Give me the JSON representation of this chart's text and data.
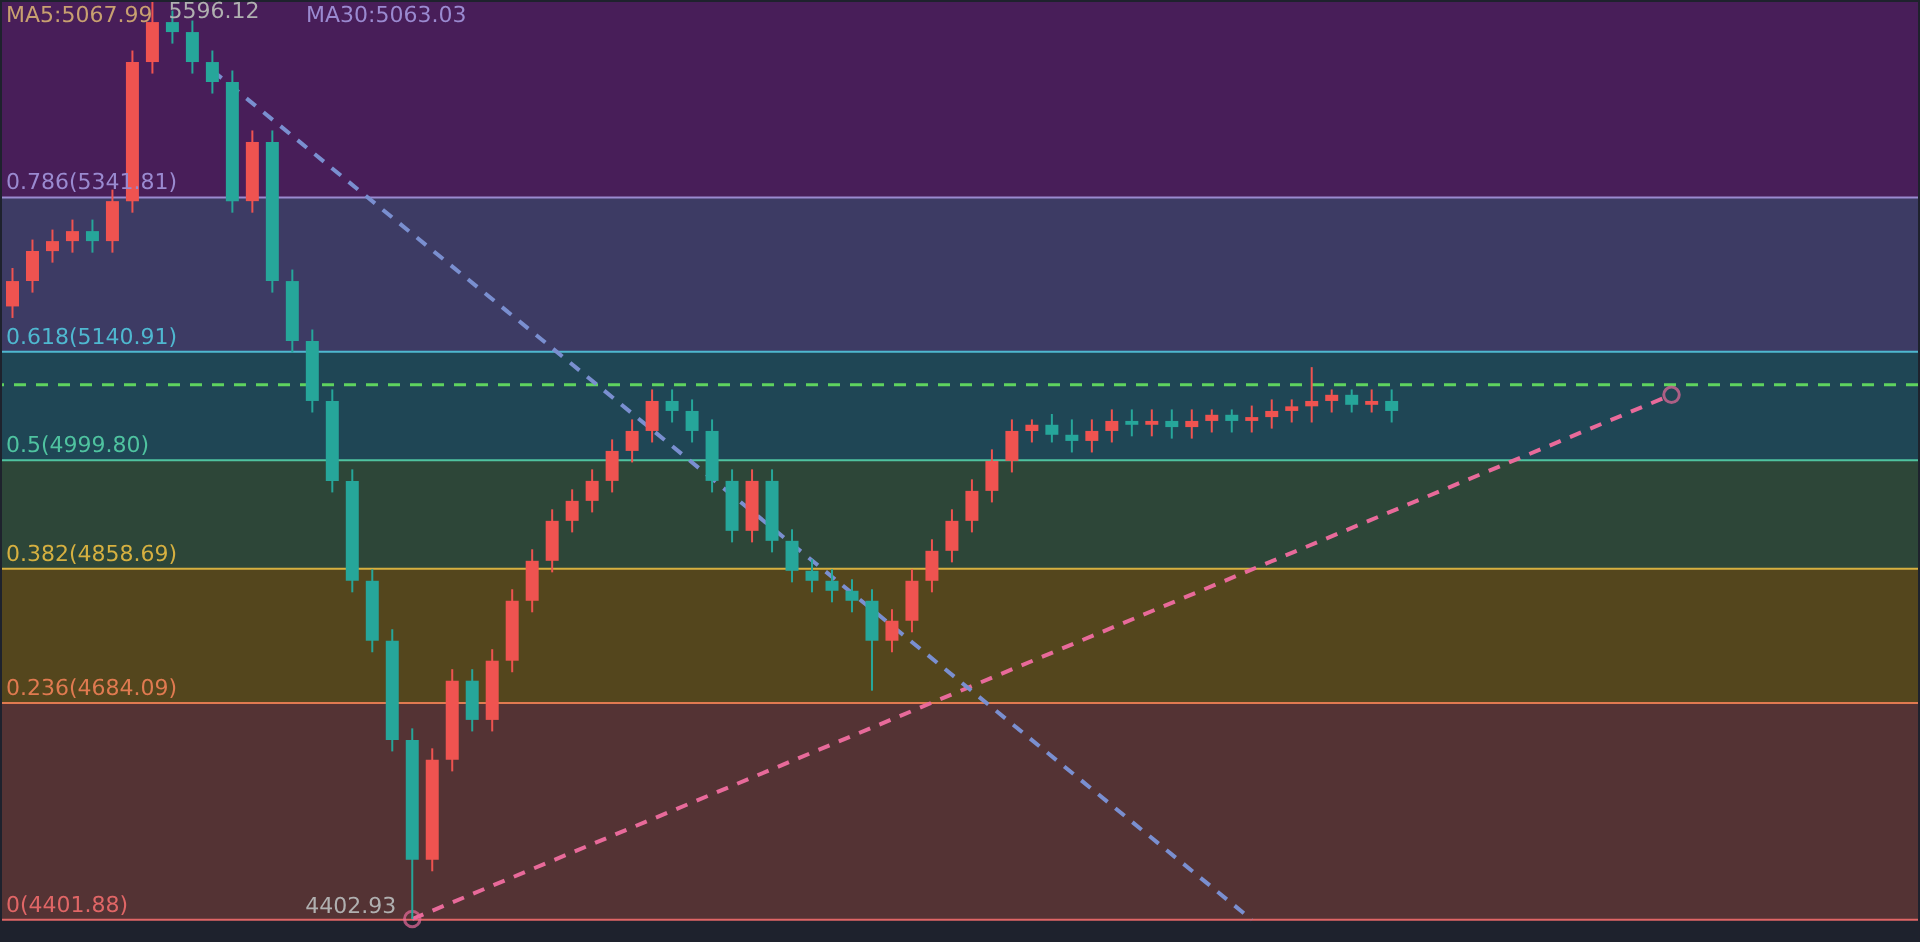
{
  "chart_data": {
    "type": "candlestick",
    "categories": [
      null,
      null,
      null,
      null,
      null,
      null,
      null,
      null,
      null,
      null,
      null,
      null,
      null,
      null,
      null,
      null,
      null,
      null,
      null,
      null,
      null,
      null,
      null,
      null,
      null,
      null,
      null,
      null,
      null,
      null,
      null,
      null,
      null,
      null,
      null,
      null,
      null,
      null,
      null,
      null,
      null,
      null,
      null,
      null,
      null,
      null,
      null,
      null,
      null,
      null,
      null,
      null,
      null,
      null,
      null,
      null,
      null,
      null,
      null,
      null,
      null,
      null,
      null,
      null,
      null,
      null,
      null,
      null,
      null,
      null,
      null,
      null,
      null,
      null,
      null,
      null,
      null,
      null,
      null,
      null,
      null,
      null,
      null,
      null
    ],
    "ohlc": [
      [
        5200,
        5250,
        5185,
        5233
      ],
      [
        5233,
        5287,
        5218,
        5272
      ],
      [
        5272,
        5300,
        5257,
        5285
      ],
      [
        5285,
        5313,
        5270,
        5298
      ],
      [
        5298,
        5313,
        5270,
        5285
      ],
      [
        5285,
        5352,
        5270,
        5337
      ],
      [
        5337,
        5533,
        5322,
        5518
      ],
      [
        5518,
        5596.12,
        5503,
        5570
      ],
      [
        5570,
        5585,
        5542,
        5557
      ],
      [
        5557,
        5572,
        5503,
        5518
      ],
      [
        5518,
        5533,
        5477,
        5492
      ],
      [
        5492,
        5507,
        5322,
        5337
      ],
      [
        5337,
        5429,
        5322,
        5414
      ],
      [
        5414,
        5429,
        5218,
        5233
      ],
      [
        5233,
        5248,
        5140,
        5155
      ],
      [
        5155,
        5170,
        5062,
        5077
      ],
      [
        5077,
        5092,
        4958,
        4973
      ],
      [
        4973,
        4988,
        4828,
        4843
      ],
      [
        4843,
        4858,
        4750,
        4765
      ],
      [
        4765,
        4780,
        4621,
        4636
      ],
      [
        4636,
        4651,
        4402.93,
        4480
      ],
      [
        4480,
        4625,
        4465,
        4610
      ],
      [
        4610,
        4728,
        4595,
        4713
      ],
      [
        4713,
        4728,
        4647,
        4662
      ],
      [
        4662,
        4754,
        4647,
        4739
      ],
      [
        4739,
        4832,
        4724,
        4817
      ],
      [
        4817,
        4884,
        4802,
        4869
      ],
      [
        4869,
        4936,
        4854,
        4921
      ],
      [
        4921,
        4962,
        4906,
        4947
      ],
      [
        4947,
        4988,
        4932,
        4973
      ],
      [
        4973,
        5027,
        4958,
        5012
      ],
      [
        5012,
        5053,
        4997,
        5038
      ],
      [
        5038,
        5092,
        5023,
        5077
      ],
      [
        5077,
        5092,
        5049,
        5064
      ],
      [
        5064,
        5079,
        5023,
        5038
      ],
      [
        5038,
        5053,
        4958,
        4973
      ],
      [
        4973,
        4988,
        4893,
        4908
      ],
      [
        4908,
        4988,
        4893,
        4973
      ],
      [
        4973,
        4988,
        4880,
        4895
      ],
      [
        4895,
        4910,
        4841,
        4856
      ],
      [
        4856,
        4871,
        4828,
        4843
      ],
      [
        4843,
        4858,
        4815,
        4830
      ],
      [
        4830,
        4845,
        4802,
        4817
      ],
      [
        4817,
        4832,
        4700,
        4765
      ],
      [
        4765,
        4806,
        4750,
        4791
      ],
      [
        4791,
        4858,
        4776,
        4843
      ],
      [
        4843,
        4897,
        4828,
        4882
      ],
      [
        4882,
        4936,
        4867,
        4921
      ],
      [
        4921,
        4975,
        4906,
        4960
      ],
      [
        4960,
        5014,
        4945,
        4999
      ],
      [
        4999,
        5053,
        4984,
        5038
      ],
      [
        5038,
        5053,
        5023,
        5046
      ],
      [
        5046,
        5060,
        5023,
        5033
      ],
      [
        5033,
        5053,
        5010,
        5025
      ],
      [
        5025,
        5053,
        5010,
        5038
      ],
      [
        5038,
        5066,
        5023,
        5051
      ],
      [
        5051,
        5066,
        5031,
        5046
      ],
      [
        5046,
        5066,
        5031,
        5051
      ],
      [
        5051,
        5066,
        5028,
        5043
      ],
      [
        5043,
        5066,
        5028,
        5051
      ],
      [
        5051,
        5066,
        5036,
        5059
      ],
      [
        5059,
        5066,
        5036,
        5051
      ],
      [
        5051,
        5071,
        5036,
        5056
      ],
      [
        5056,
        5079,
        5041,
        5064
      ],
      [
        5064,
        5079,
        5049,
        5070
      ],
      [
        5070,
        5121,
        5049,
        5077
      ],
      [
        5077,
        5092,
        5062,
        5085
      ],
      [
        5085,
        5092,
        5062,
        5072
      ],
      [
        5072,
        5092,
        5062,
        5077
      ],
      [
        5077,
        5092,
        5049,
        5064
      ],
      null,
      null,
      null,
      null,
      null,
      null,
      null,
      null,
      null,
      null,
      null,
      null,
      null,
      null
    ],
    "colors": [
      "#ef5350",
      "#ef5350",
      "#ef5350",
      "#ef5350",
      "#26a69a",
      "#ef5350",
      "#ef5350",
      "#ef5350",
      "#26a69a",
      "#26a69a",
      "#26a69a",
      "#26a69a",
      "#ef5350",
      "#26a69a",
      "#26a69a",
      "#26a69a",
      "#26a69a",
      "#26a69a",
      "#26a69a",
      "#26a69a",
      "#26a69a",
      "#ef5350",
      "#ef5350",
      "#26a69a",
      "#ef5350",
      "#ef5350",
      "#ef5350",
      "#ef5350",
      "#ef5350",
      "#ef5350",
      "#ef5350",
      "#ef5350",
      "#ef5350",
      "#26a69a",
      "#26a69a",
      "#26a69a",
      "#26a69a",
      "#ef5350",
      "#26a69a",
      "#26a69a",
      "#26a69a",
      "#26a69a",
      "#26a69a",
      "#26a69a",
      "#ef5350",
      "#ef5350",
      "#ef5350",
      "#ef5350",
      "#ef5350",
      "#ef5350",
      "#ef5350",
      "#ef5350",
      "#26a69a",
      "#26a69a",
      "#ef5350",
      "#ef5350",
      "#26a69a",
      "#ef5350",
      "#26a69a",
      "#ef5350",
      "#ef5350",
      "#26a69a",
      "#ef5350",
      "#ef5350",
      "#ef5350",
      "#ef5350",
      "#ef5350",
      "#26a69a",
      "#ef5350",
      "#26a69a",
      null,
      null,
      null,
      null,
      null,
      null,
      null,
      null,
      null,
      null,
      null,
      null,
      null,
      null
    ],
    "series": [
      {
        "type": "line",
        "color": "#e86a9a",
        "line_style": "dashed",
        "marker": "circle",
        "values": [
          null,
          null,
          null,
          null,
          null,
          null,
          null,
          null,
          null,
          null,
          null,
          null,
          null,
          null,
          null,
          null,
          null,
          null,
          null,
          null,
          4402.93,
          null,
          null,
          null,
          null,
          null,
          null,
          null,
          null,
          null,
          null,
          null,
          null,
          null,
          null,
          null,
          null,
          null,
          null,
          null,
          null,
          null,
          null,
          null,
          null,
          null,
          null,
          null,
          null,
          null,
          null,
          null,
          null,
          null,
          null,
          null,
          null,
          null,
          null,
          null,
          null,
          null,
          null,
          null,
          null,
          null,
          null,
          null,
          null,
          null,
          null,
          null,
          null,
          null,
          null,
          null,
          null,
          null,
          null,
          null,
          null,
          null,
          null,
          5085
        ]
      },
      {
        "type": "line",
        "color": "#7a8fd0",
        "line_style": "dashed",
        "values": [
          null,
          null,
          null,
          null,
          null,
          null,
          null,
          null,
          null,
          null,
          5507,
          null,
          null,
          null,
          null,
          null,
          null,
          null,
          null,
          null,
          null,
          null,
          null,
          null,
          null,
          null,
          null,
          null,
          null,
          null,
          null,
          null,
          null,
          null,
          null,
          null,
          null,
          null,
          null,
          null,
          null,
          null,
          null,
          null,
          null,
          null,
          null,
          null,
          null,
          null,
          null,
          null,
          null,
          null,
          null,
          null,
          null,
          null,
          null,
          null,
          null,
          null,
          4402,
          null,
          null,
          null,
          null,
          null,
          null,
          null,
          null,
          null,
          null,
          null,
          null,
          null,
          null,
          null,
          null,
          null,
          null,
          null,
          null,
          null
        ]
      }
    ],
    "ylim": [
      4373,
      5596.12
    ],
    "tick_labels": false,
    "grid": false,
    "bands": [
      {
        "axis": "y",
        "from": 4401.88,
        "to": 4684.09,
        "color": "#5a3535"
      },
      {
        "axis": "y",
        "from": 4684.09,
        "to": 4858.69,
        "color": "#5a4a1c"
      },
      {
        "axis": "y",
        "from": 4858.69,
        "to": 4999.8,
        "color": "#2f4a3a"
      },
      {
        "axis": "y",
        "from": 4999.8,
        "to": 5140.91,
        "color": "#1f4a5a"
      },
      {
        "axis": "y",
        "from": 5140.91,
        "to": 5341.81,
        "color": "#403e6a"
      },
      {
        "axis": "y",
        "from": 5341.81,
        "to": 5596.12,
        "color": "#4d1e5e"
      }
    ],
    "ref_lines": [
      {
        "axis": "y",
        "value": 4401.88,
        "label": "0(4401.88)",
        "color": "#e06666"
      },
      {
        "axis": "y",
        "value": 4684.09,
        "label": "0.236(4684.09)",
        "color": "#e07a50"
      },
      {
        "axis": "y",
        "value": 4858.69,
        "label": "0.382(4858.69)",
        "color": "#d6b040"
      },
      {
        "axis": "y",
        "value": 4999.8,
        "label": "0.5(4999.80)",
        "color": "#4fc3a0"
      },
      {
        "axis": "y",
        "value": 5140.91,
        "label": "0.618(5140.91)",
        "color": "#4fb8d0"
      },
      {
        "axis": "y",
        "value": 5341.81,
        "label": "0.786(5341.81)",
        "color": "#9a8ad0"
      },
      {
        "axis": "y",
        "value": 5098,
        "color": "#5fd35f",
        "line_style": "dashed"
      }
    ],
    "annotations": [
      "MA5:5067.99",
      "MA30:5063.03",
      {
        "text": "5596.12",
        "y": 5596.12
      },
      {
        "text": "4402.93",
        "y": 4402.93
      }
    ]
  }
}
